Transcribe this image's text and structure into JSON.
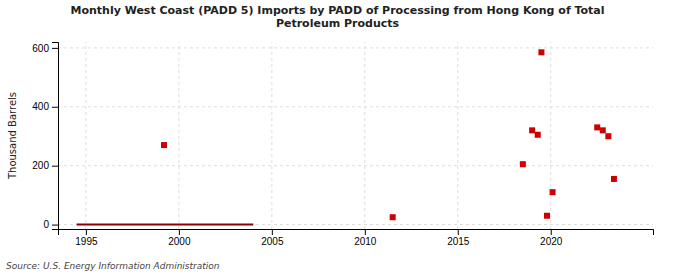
{
  "chart_data": {
    "type": "scatter",
    "title": "Monthly West Coast (PADD 5) Imports by PADD of Processing from Hong Kong of Total\nPetroleum Products",
    "ylabel": "Thousand Barrels",
    "source": "Source: U.S. Energy Information Administration",
    "xlim": [
      1993.5,
      2025.5
    ],
    "ylim": [
      -15,
      620
    ],
    "xticks": [
      1995,
      2000,
      2005,
      2010,
      2015,
      2020
    ],
    "yticks": [
      0,
      200,
      400,
      600
    ],
    "grid": true,
    "series": [
      {
        "type": "line",
        "color": "#8b0000",
        "line_style": "solid",
        "x": [
          1994.5,
          2004.0
        ],
        "values": [
          0,
          0
        ]
      },
      {
        "type": "scatter",
        "color": "#cc0000",
        "marker": "square",
        "x": [
          1999.2,
          2011.5,
          2018.5,
          2019.0,
          2019.3,
          2019.5,
          2019.8,
          2020.1,
          2022.5,
          2022.8,
          2023.1,
          2023.4
        ],
        "values": [
          270,
          25,
          205,
          320,
          305,
          585,
          30,
          110,
          330,
          320,
          300,
          155
        ]
      }
    ]
  }
}
